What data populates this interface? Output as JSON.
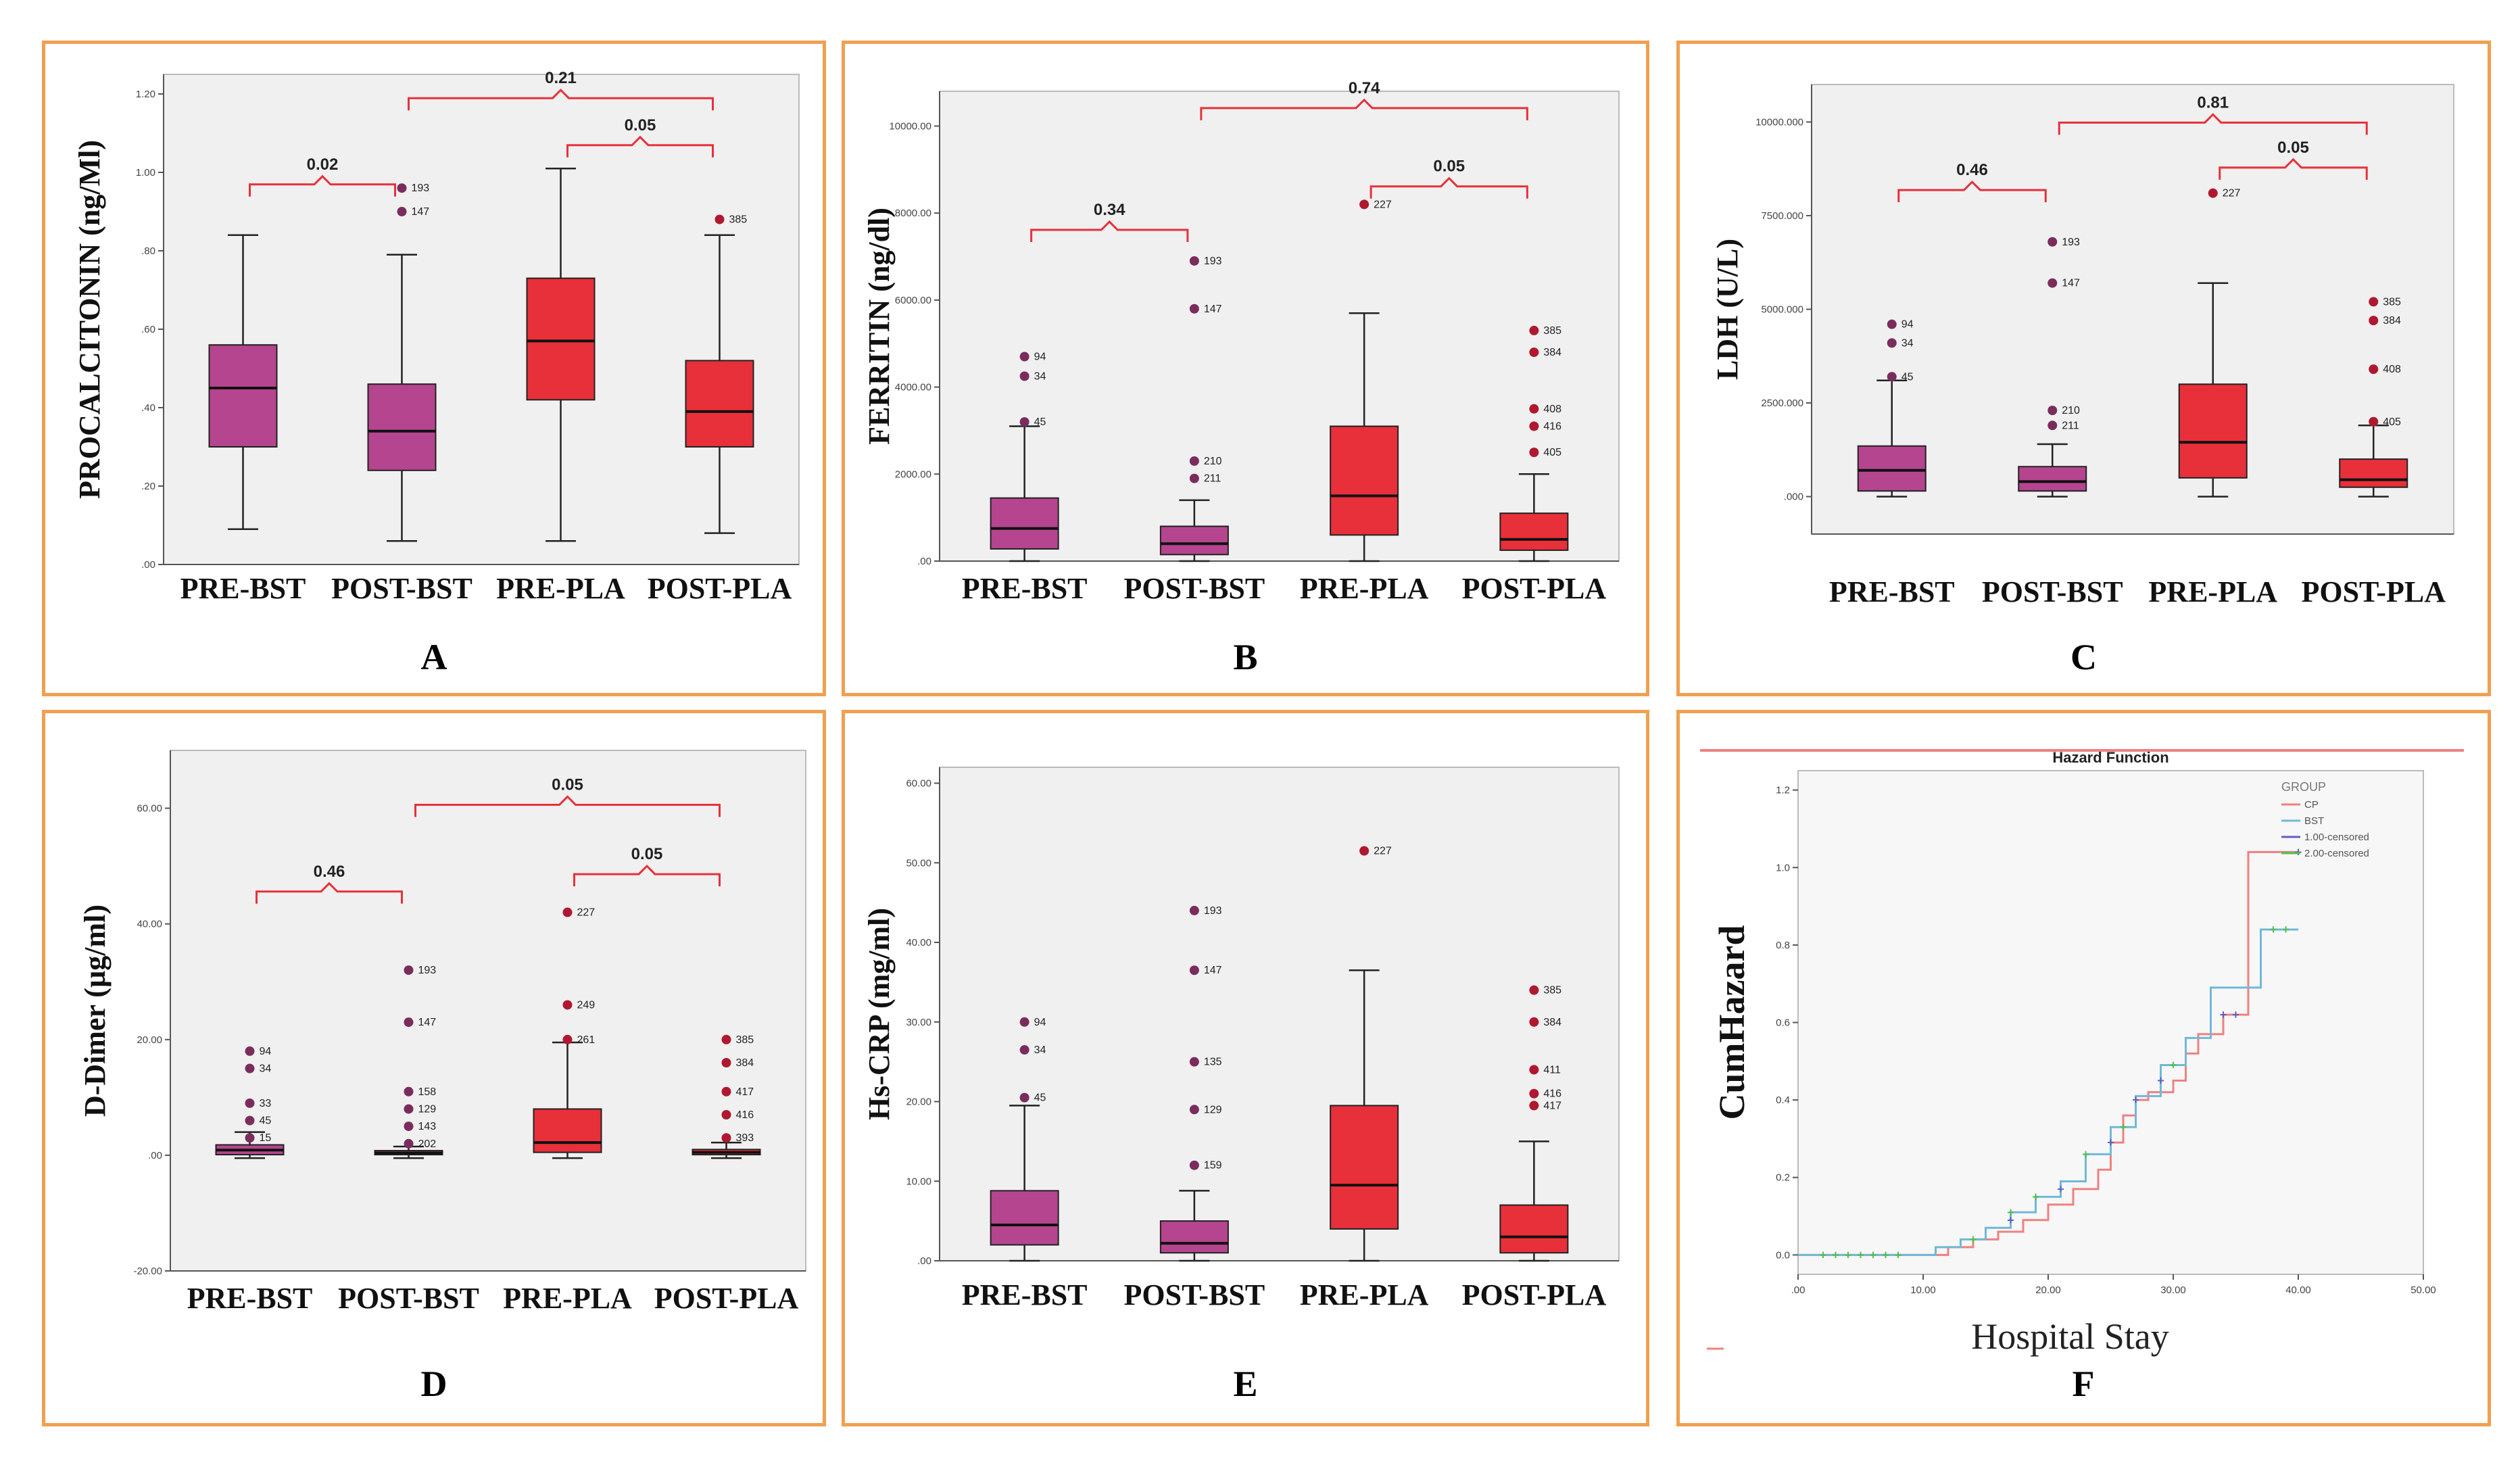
{
  "chart_data": [
    {
      "type": "box",
      "id": "A",
      "letter": "A",
      "ylabel": "PROCALCITONIN (ng/Ml)",
      "ylim": [
        0,
        1.25
      ],
      "yticks": [
        ".00",
        ".20",
        ".40",
        ".60",
        ".80",
        "1.00",
        "1.20"
      ],
      "ytick_values": [
        0,
        0.2,
        0.4,
        0.6,
        0.8,
        1.0,
        1.2
      ],
      "categories": [
        "PRE-BST",
        "POST-BST",
        "PRE-PLA",
        "POST-PLA"
      ],
      "colors": [
        "#b5458e",
        "#b5458e",
        "#e8303a",
        "#e8303a"
      ],
      "boxes": [
        {
          "min": 0.09,
          "q1": 0.3,
          "median": 0.45,
          "q3": 0.56,
          "max": 0.84
        },
        {
          "min": 0.06,
          "q1": 0.24,
          "median": 0.34,
          "q3": 0.46,
          "max": 0.79
        },
        {
          "min": 0.06,
          "q1": 0.42,
          "median": 0.57,
          "q3": 0.73,
          "max": 1.01
        },
        {
          "min": 0.08,
          "q1": 0.3,
          "median": 0.39,
          "q3": 0.52,
          "max": 0.84
        }
      ],
      "outliers": [
        {
          "cat": 1,
          "y": 0.96,
          "label": "193"
        },
        {
          "cat": 1,
          "y": 0.9,
          "label": "147"
        },
        {
          "cat": 3,
          "y": 0.88,
          "label": "385"
        }
      ],
      "pvalues": [
        {
          "from": 0,
          "to": 1,
          "label": "0.02",
          "y": 0.99
        },
        {
          "from": 1,
          "to": 3,
          "label": "0.21",
          "y": 1.21
        },
        {
          "from": 2,
          "to": 3,
          "label": "0.05",
          "y": 1.09
        }
      ]
    },
    {
      "type": "box",
      "id": "B",
      "letter": "B",
      "ylabel": "FERRITIN (ng/dl)",
      "ylim": [
        0,
        10800
      ],
      "yticks": [
        ".00",
        "2000.00",
        "4000.00",
        "6000.00",
        "8000.00",
        "10000.00"
      ],
      "ytick_values": [
        0,
        2000,
        4000,
        6000,
        8000,
        10000
      ],
      "categories": [
        "PRE-BST",
        "POST-BST",
        "PRE-PLA",
        "POST-PLA"
      ],
      "colors": [
        "#b5458e",
        "#b5458e",
        "#e8303a",
        "#e8303a"
      ],
      "boxes": [
        {
          "min": 0,
          "q1": 280,
          "median": 750,
          "q3": 1450,
          "max": 3100
        },
        {
          "min": 0,
          "q1": 150,
          "median": 400,
          "q3": 800,
          "max": 1400
        },
        {
          "min": 0,
          "q1": 600,
          "median": 1500,
          "q3": 3100,
          "max": 5700
        },
        {
          "min": 0,
          "q1": 250,
          "median": 500,
          "q3": 1100,
          "max": 2000
        }
      ],
      "outliers": [
        {
          "cat": 0,
          "y": 4700,
          "label": "94"
        },
        {
          "cat": 0,
          "y": 4250,
          "label": "34"
        },
        {
          "cat": 0,
          "y": 3200,
          "label": "45"
        },
        {
          "cat": 1,
          "y": 6900,
          "label": "193"
        },
        {
          "cat": 1,
          "y": 5800,
          "label": "147"
        },
        {
          "cat": 1,
          "y": 2300,
          "label": "210"
        },
        {
          "cat": 1,
          "y": 1900,
          "label": "211"
        },
        {
          "cat": 2,
          "y": 8200,
          "label": "227"
        },
        {
          "cat": 3,
          "y": 5300,
          "label": "385"
        },
        {
          "cat": 3,
          "y": 4800,
          "label": "384"
        },
        {
          "cat": 3,
          "y": 3500,
          "label": "408"
        },
        {
          "cat": 3,
          "y": 3100,
          "label": "416"
        },
        {
          "cat": 3,
          "y": 2500,
          "label": "405"
        }
      ],
      "pvalues": [
        {
          "from": 0,
          "to": 1,
          "label": "0.34",
          "y": 7800
        },
        {
          "from": 1,
          "to": 3,
          "label": "0.74",
          "y": 10600
        },
        {
          "from": 2,
          "to": 3,
          "label": "0.05",
          "y": 8800
        }
      ]
    },
    {
      "type": "box",
      "id": "C",
      "letter": "C",
      "ylabel": "LDH (U/L)",
      "ylim": [
        -1000,
        11000
      ],
      "yticks": [
        ".000",
        "2500.000",
        "5000.000",
        "7500.000",
        "10000.000"
      ],
      "ytick_values": [
        0,
        2500,
        5000,
        7500,
        10000
      ],
      "categories": [
        "PRE-BST",
        "POST-BST",
        "PRE-PLA",
        "POST-PLA"
      ],
      "colors": [
        "#b5458e",
        "#b5458e",
        "#e8303a",
        "#e8303a"
      ],
      "boxes": [
        {
          "min": 0,
          "q1": 150,
          "median": 700,
          "q3": 1350,
          "max": 3100
        },
        {
          "min": 0,
          "q1": 150,
          "median": 400,
          "q3": 800,
          "max": 1400
        },
        {
          "min": 0,
          "q1": 500,
          "median": 1450,
          "q3": 3000,
          "max": 5700
        },
        {
          "min": 0,
          "q1": 250,
          "median": 450,
          "q3": 1000,
          "max": 1900
        }
      ],
      "outliers": [
        {
          "cat": 0,
          "y": 4600,
          "label": "94"
        },
        {
          "cat": 0,
          "y": 4100,
          "label": "34"
        },
        {
          "cat": 0,
          "y": 3200,
          "label": "45"
        },
        {
          "cat": 1,
          "y": 6800,
          "label": "193"
        },
        {
          "cat": 1,
          "y": 5700,
          "label": "147"
        },
        {
          "cat": 1,
          "y": 2300,
          "label": "210"
        },
        {
          "cat": 1,
          "y": 1900,
          "label": "211"
        },
        {
          "cat": 2,
          "y": 8100,
          "label": "227"
        },
        {
          "cat": 3,
          "y": 5200,
          "label": "385"
        },
        {
          "cat": 3,
          "y": 4700,
          "label": "384"
        },
        {
          "cat": 3,
          "y": 3400,
          "label": "408"
        },
        {
          "cat": 3,
          "y": 2000,
          "label": "405"
        }
      ],
      "pvalues": [
        {
          "from": 0,
          "to": 1,
          "label": "0.46",
          "y": 8400
        },
        {
          "from": 1,
          "to": 3,
          "label": "0.81",
          "y": 10200
        },
        {
          "from": 2,
          "to": 3,
          "label": "0.05",
          "y": 9000
        }
      ]
    },
    {
      "type": "box",
      "id": "D",
      "letter": "D",
      "ylabel": "D-Dimer (µg/ml)",
      "ylim": [
        -20,
        70
      ],
      "yticks": [
        "-20.00",
        ".00",
        "20.00",
        "40.00",
        "60.00"
      ],
      "ytick_values": [
        -20,
        0,
        20,
        40,
        60
      ],
      "categories": [
        "PRE-BST",
        "POST-BST",
        "PRE-PLA",
        "POST-PLA"
      ],
      "colors": [
        "#b5458e",
        "#b5458e",
        "#e8303a",
        "#e8303a"
      ],
      "boxes": [
        {
          "min": -0.5,
          "q1": 0.1,
          "median": 0.9,
          "q3": 1.8,
          "max": 4.0
        },
        {
          "min": -0.5,
          "q1": 0.1,
          "median": 0.4,
          "q3": 0.8,
          "max": 1.5
        },
        {
          "min": -0.5,
          "q1": 0.5,
          "median": 2.2,
          "q3": 8.0,
          "max": 19.5
        },
        {
          "min": -0.5,
          "q1": 0.1,
          "median": 0.5,
          "q3": 1.0,
          "max": 2.2
        }
      ],
      "outliers": [
        {
          "cat": 0,
          "y": 18,
          "label": "94"
        },
        {
          "cat": 0,
          "y": 15,
          "label": "34"
        },
        {
          "cat": 0,
          "y": 9,
          "label": "33"
        },
        {
          "cat": 0,
          "y": 6,
          "label": "45"
        },
        {
          "cat": 0,
          "y": 3,
          "label": "15"
        },
        {
          "cat": 1,
          "y": 32,
          "label": "193"
        },
        {
          "cat": 1,
          "y": 23,
          "label": "147"
        },
        {
          "cat": 1,
          "y": 11,
          "label": "158"
        },
        {
          "cat": 1,
          "y": 8,
          "label": "129"
        },
        {
          "cat": 1,
          "y": 5,
          "label": "143"
        },
        {
          "cat": 1,
          "y": 2,
          "label": "202"
        },
        {
          "cat": 2,
          "y": 42,
          "label": "227"
        },
        {
          "cat": 2,
          "y": 26,
          "label": "249"
        },
        {
          "cat": 2,
          "y": 20,
          "label": "261"
        },
        {
          "cat": 3,
          "y": 20,
          "label": "385"
        },
        {
          "cat": 3,
          "y": 16,
          "label": "384"
        },
        {
          "cat": 3,
          "y": 11,
          "label": "417"
        },
        {
          "cat": 3,
          "y": 7,
          "label": "416"
        },
        {
          "cat": 3,
          "y": 3,
          "label": "393"
        }
      ],
      "pvalues": [
        {
          "from": 0,
          "to": 1,
          "label": "0.46",
          "y": 47
        },
        {
          "from": 1,
          "to": 3,
          "label": "0.05",
          "y": 62
        },
        {
          "from": 2,
          "to": 3,
          "label": "0.05",
          "y": 50
        }
      ]
    },
    {
      "type": "box",
      "id": "E",
      "letter": "E",
      "ylabel": "Hs-CRP (mg/ml)",
      "ylim": [
        0,
        62
      ],
      "yticks": [
        ".00",
        "10.00",
        "20.00",
        "30.00",
        "40.00",
        "50.00",
        "60.00"
      ],
      "ytick_values": [
        0,
        10,
        20,
        30,
        40,
        50,
        60
      ],
      "categories": [
        "PRE-BST",
        "POST-BST",
        "PRE-PLA",
        "POST-PLA"
      ],
      "colors": [
        "#b5458e",
        "#b5458e",
        "#e8303a",
        "#e8303a"
      ],
      "boxes": [
        {
          "min": 0,
          "q1": 2,
          "median": 4.5,
          "q3": 8.8,
          "max": 19.5
        },
        {
          "min": 0,
          "q1": 1,
          "median": 2.2,
          "q3": 5,
          "max": 8.8
        },
        {
          "min": 0,
          "q1": 4,
          "median": 9.5,
          "q3": 19.5,
          "max": 36.5
        },
        {
          "min": 0,
          "q1": 1,
          "median": 3,
          "q3": 7,
          "max": 15
        }
      ],
      "outliers": [
        {
          "cat": 0,
          "y": 30,
          "label": "94"
        },
        {
          "cat": 0,
          "y": 26.5,
          "label": "34"
        },
        {
          "cat": 0,
          "y": 20.5,
          "label": "45"
        },
        {
          "cat": 1,
          "y": 44,
          "label": "193"
        },
        {
          "cat": 1,
          "y": 36.5,
          "label": "147"
        },
        {
          "cat": 1,
          "y": 25,
          "label": "135"
        },
        {
          "cat": 1,
          "y": 19,
          "label": "129"
        },
        {
          "cat": 1,
          "y": 12,
          "label": "159"
        },
        {
          "cat": 2,
          "y": 51.5,
          "label": "227"
        },
        {
          "cat": 3,
          "y": 34,
          "label": "385"
        },
        {
          "cat": 3,
          "y": 30,
          "label": "384"
        },
        {
          "cat": 3,
          "y": 24,
          "label": "411"
        },
        {
          "cat": 3,
          "y": 21,
          "label": "416"
        },
        {
          "cat": 3,
          "y": 19.5,
          "label": "417"
        }
      ],
      "pvalues": []
    },
    {
      "type": "line",
      "id": "F",
      "letter": "F",
      "title": "Hazard Function",
      "xlabel": "Hospital Stay",
      "ylabel": "CumHazard",
      "xlim": [
        0,
        50
      ],
      "ylim": [
        -0.05,
        1.25
      ],
      "xticks": [
        ".00",
        "10.00",
        "20.00",
        "30.00",
        "40.00",
        "50.00"
      ],
      "xtick_values": [
        0,
        10,
        20,
        30,
        40,
        50
      ],
      "yticks": [
        "0.0",
        "0.2",
        "0.4",
        "0.6",
        "0.8",
        "1.0",
        "1.2"
      ],
      "ytick_values": [
        0,
        0.2,
        0.4,
        0.6,
        0.8,
        1.0,
        1.2
      ],
      "legend": {
        "title": "GROUP",
        "position": "top-right",
        "entries": [
          "CP",
          "BST",
          "1.00-censored",
          "2.00-censored"
        ]
      },
      "series": [
        {
          "name": "CP",
          "color": "#f08080",
          "x": [
            0,
            10,
            12,
            14,
            16,
            18,
            20,
            22,
            24,
            25,
            26,
            27,
            28,
            30,
            31,
            32,
            34,
            36,
            40
          ],
          "y": [
            0,
            0,
            0.02,
            0.04,
            0.06,
            0.09,
            0.13,
            0.17,
            0.22,
            0.29,
            0.36,
            0.4,
            0.42,
            0.45,
            0.52,
            0.57,
            0.62,
            1.04,
            1.04
          ]
        },
        {
          "name": "BST",
          "color": "#70b8d8",
          "x": [
            0,
            9,
            11,
            13,
            15,
            17,
            19,
            21,
            23,
            25,
            27,
            29,
            31,
            33,
            35,
            37,
            40
          ],
          "y": [
            0,
            0,
            0.02,
            0.04,
            0.07,
            0.11,
            0.15,
            0.19,
            0.26,
            0.33,
            0.41,
            0.49,
            0.56,
            0.69,
            0.69,
            0.84,
            0.84
          ]
        }
      ],
      "censored": [
        {
          "group": "1.00-censored",
          "color": "#6060c0",
          "x": [
            17,
            21,
            25,
            27,
            29,
            34,
            35,
            40
          ],
          "y": [
            0.09,
            0.17,
            0.29,
            0.4,
            0.45,
            0.62,
            0.62,
            1.04
          ]
        },
        {
          "group": "2.00-censored",
          "color": "#50c050",
          "x": [
            2,
            3,
            4,
            5,
            6,
            7,
            8,
            14,
            17,
            19,
            23,
            26,
            30,
            38,
            39
          ],
          "y": [
            0,
            0,
            0,
            0,
            0,
            0,
            0,
            0.04,
            0.11,
            0.15,
            0.26,
            0.33,
            0.49,
            0.84,
            0.84
          ]
        }
      ]
    }
  ]
}
